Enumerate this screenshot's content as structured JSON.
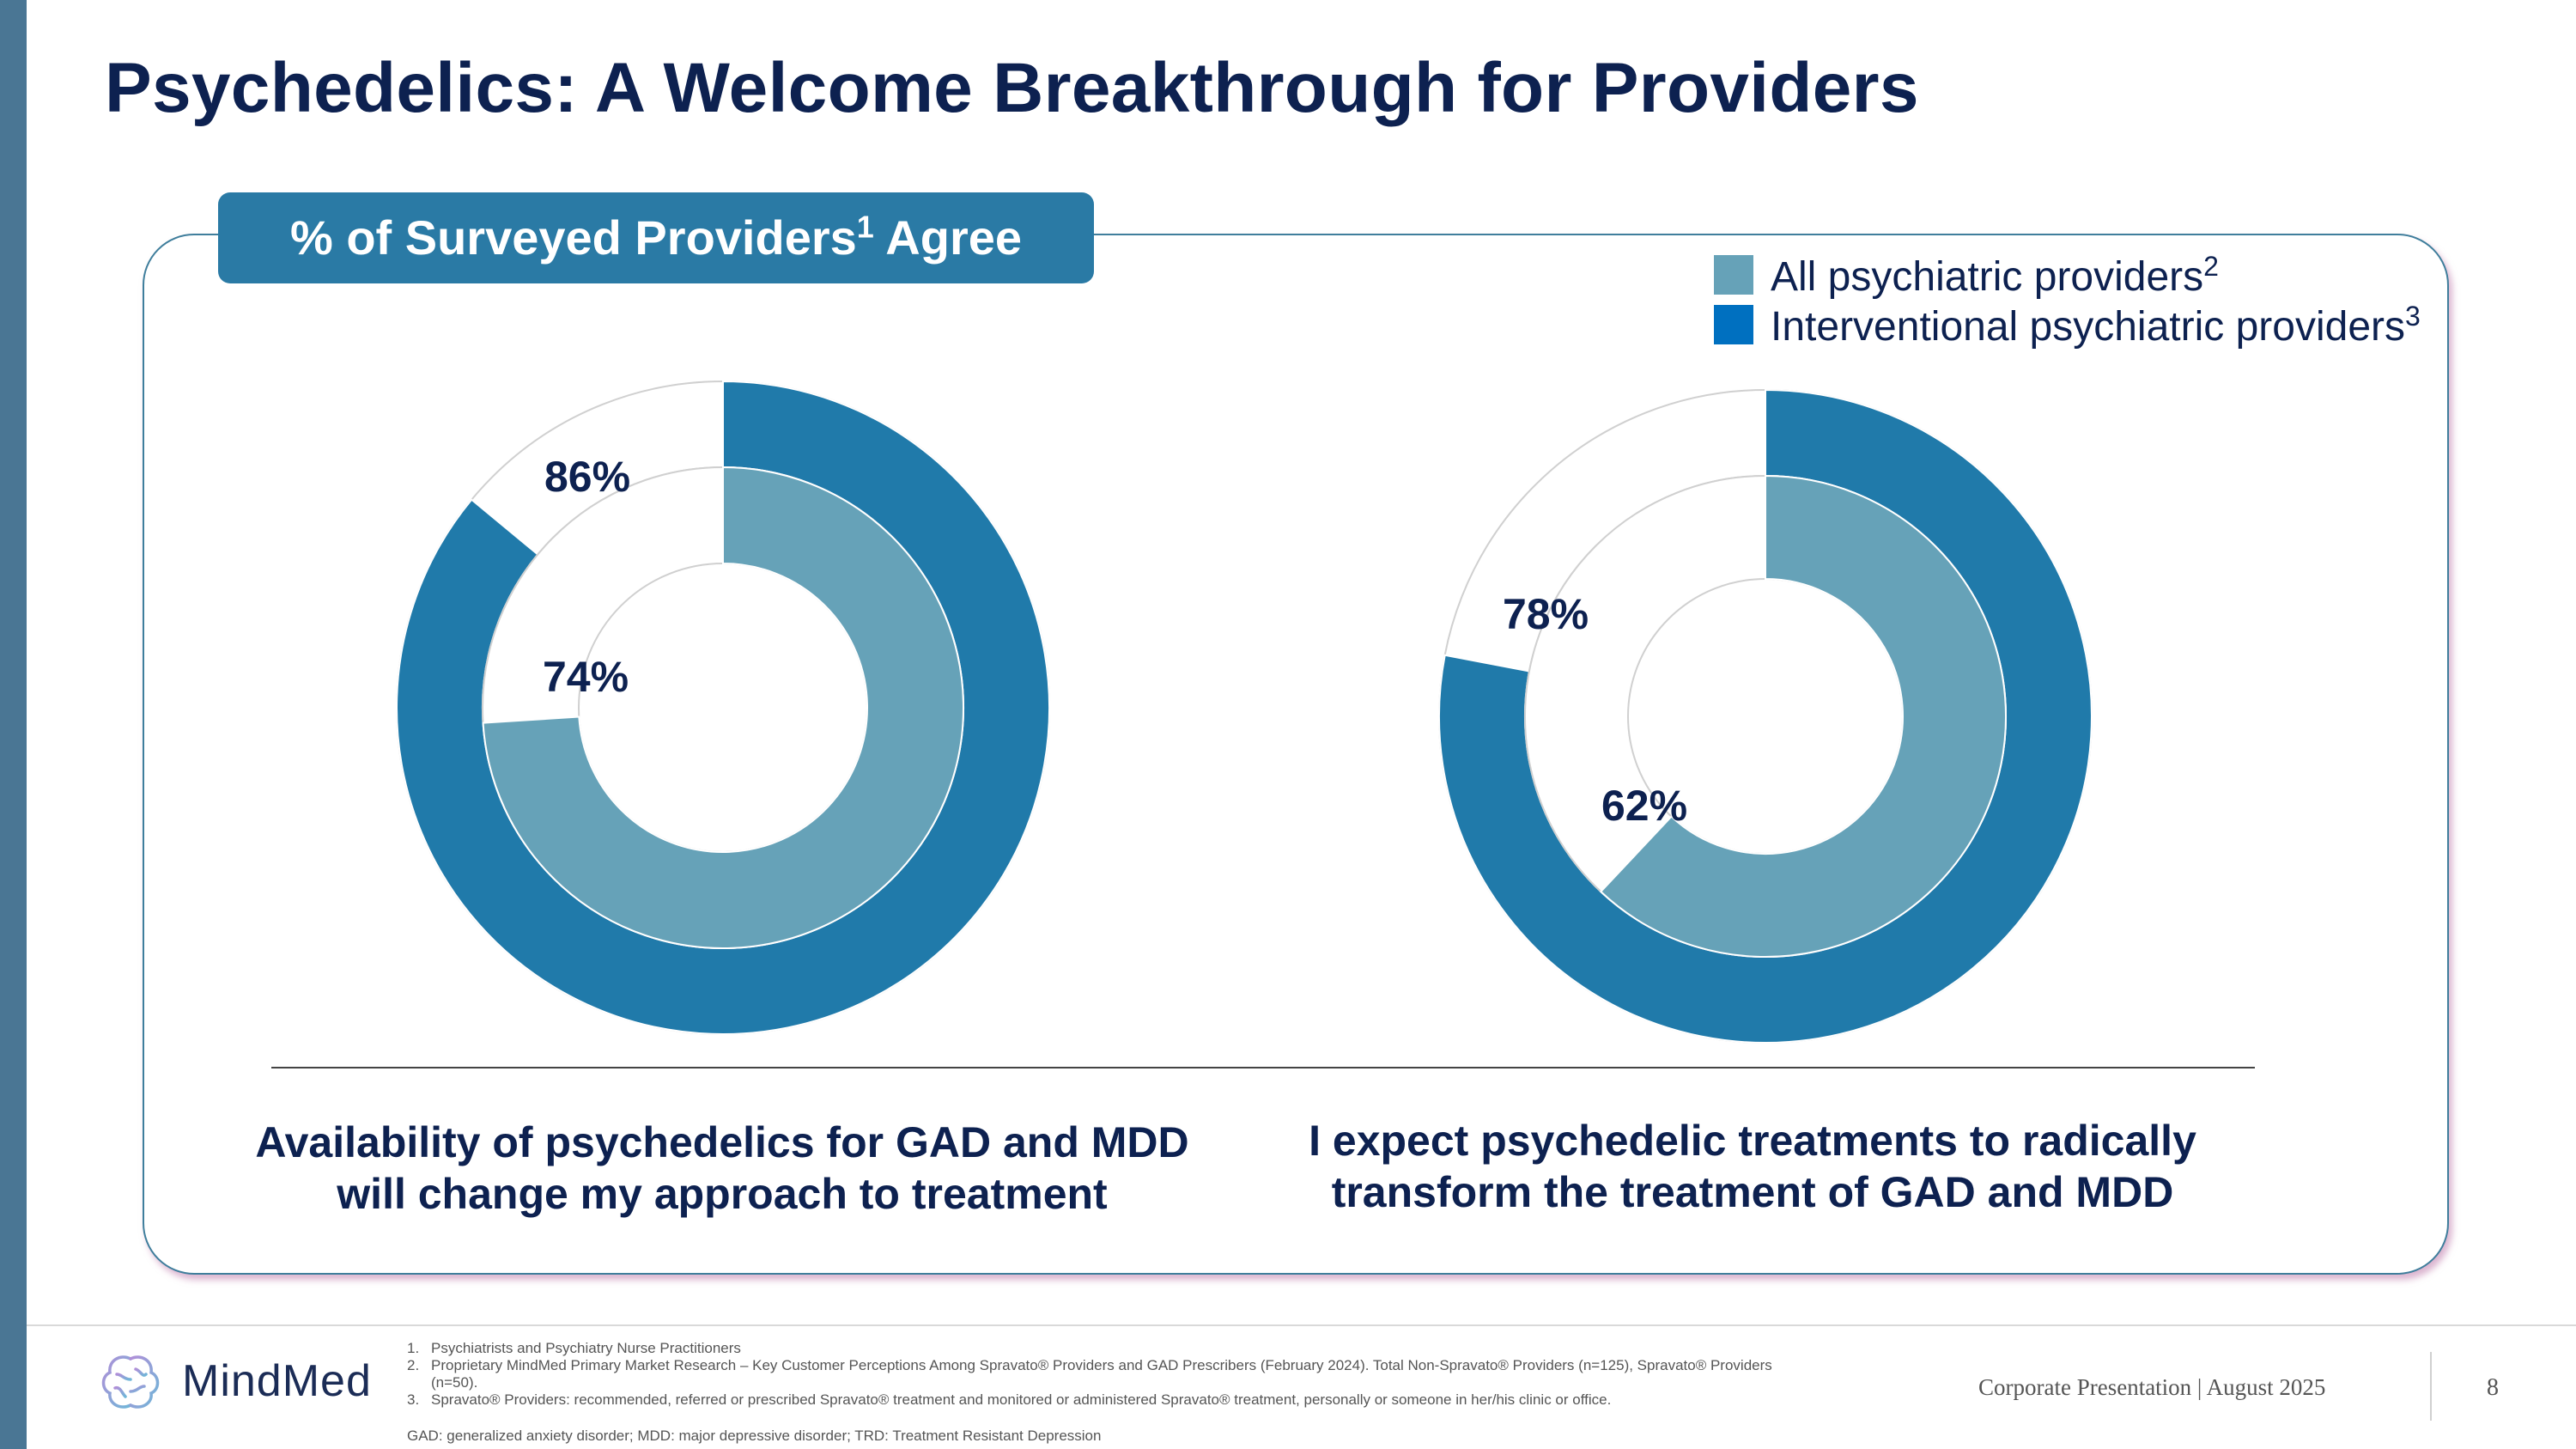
{
  "title": "Psychedelics: A Welcome Breakthrough for Providers",
  "survey_label": {
    "text": "% of Surveyed Providers",
    "sup": "1",
    "suffix": " Agree"
  },
  "legend": [
    {
      "label": "All psychiatric providers",
      "sup": "2",
      "color": "#66a2b8"
    },
    {
      "label": "Interventional psychiatric providers",
      "sup": "3",
      "color": "#0070c0"
    }
  ],
  "chart_data": [
    {
      "type": "donut",
      "caption_lines": [
        "Availability of psychedelics for GAD and MDD",
        "will change my approach to treatment"
      ],
      "series": [
        {
          "name": "Interventional psychiatric providers",
          "value": 86,
          "label": "86%",
          "ring": "outer",
          "color": "#207aaa"
        },
        {
          "name": "All psychiatric providers",
          "value": 74,
          "label": "74%",
          "ring": "inner",
          "color": "#66a2b8"
        }
      ]
    },
    {
      "type": "donut",
      "caption_lines": [
        "I expect psychedelic treatments to radically",
        "transform the treatment of GAD and MDD"
      ],
      "series": [
        {
          "name": "Interventional psychiatric providers",
          "value": 78,
          "label": "78%",
          "ring": "outer",
          "color": "#207aaa"
        },
        {
          "name": "All psychiatric providers",
          "value": 62,
          "label": "62%",
          "ring": "inner",
          "color": "#66a2b8"
        }
      ]
    }
  ],
  "footer": {
    "brand": "MindMed",
    "footnotes": [
      {
        "num": "1.",
        "text": "Psychiatrists and Psychiatry Nurse Practitioners"
      },
      {
        "num": "2.",
        "text": "Proprietary MindMed Primary Market Research – Key Customer Perceptions Among Spravato® Providers and GAD Prescribers (February 2024). Total Non-Spravato® Providers (n=125), Spravato® Providers (n=50)."
      },
      {
        "num": "3.",
        "text": "Spravato® Providers: recommended, referred or prescribed Spravato® treatment and monitored or administered Spravato® treatment, personally or someone in her/his clinic or office."
      }
    ],
    "abbreviations": "GAD: generalized anxiety disorder; MDD: major depressive disorder; TRD: Treatment Resistant Depression",
    "corporate": "Corporate Presentation | August 2025",
    "page": "8"
  }
}
